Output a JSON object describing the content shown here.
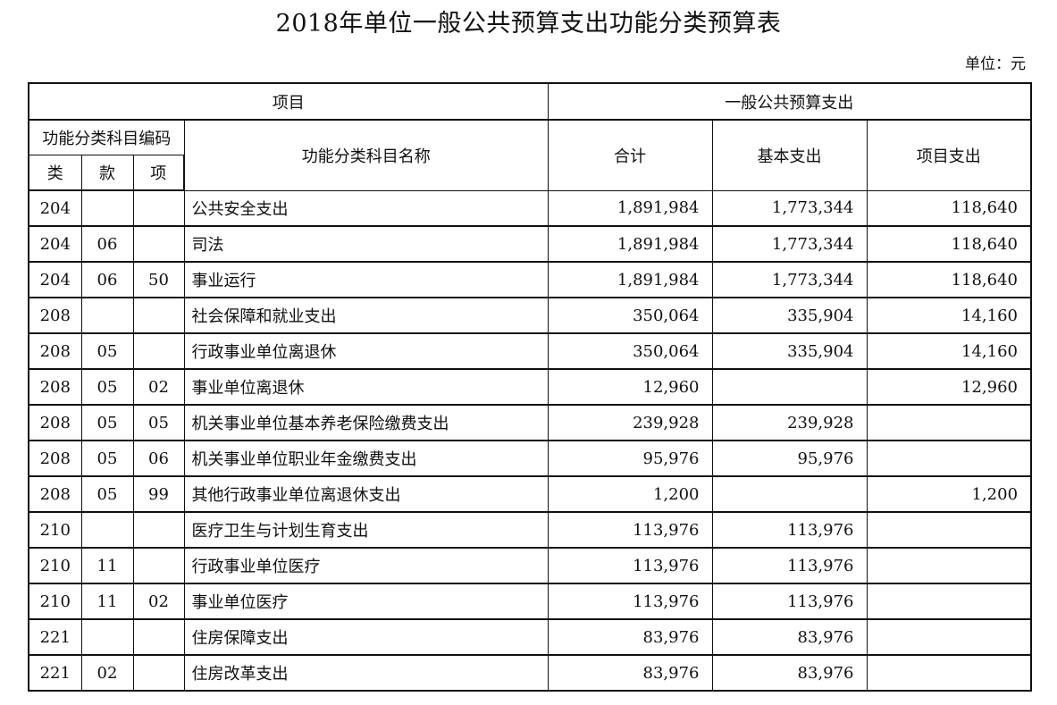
{
  "document": {
    "title": "2018年单位一般公共预算支出功能分类预算表",
    "unit": "单位：元"
  },
  "table": {
    "headers": {
      "item": "项目",
      "general_budget": "一般公共预算支出",
      "code_group": "功能分类科目编码",
      "category": "类",
      "section": "款",
      "item_code": "项",
      "name": "功能分类科目名称",
      "total": "合计",
      "basic": "基本支出",
      "project": "项目支出"
    },
    "rows": [
      {
        "lei": "204",
        "kuan": "",
        "xiang": "",
        "name": "公共安全支出",
        "total": "1,891,984",
        "basic": "1,773,344",
        "project": "118,640"
      },
      {
        "lei": "204",
        "kuan": "06",
        "xiang": "",
        "name": "司法",
        "total": "1,891,984",
        "basic": "1,773,344",
        "project": "118,640"
      },
      {
        "lei": "204",
        "kuan": "06",
        "xiang": "50",
        "name": "事业运行",
        "total": "1,891,984",
        "basic": "1,773,344",
        "project": "118,640"
      },
      {
        "lei": "208",
        "kuan": "",
        "xiang": "",
        "name": "社会保障和就业支出",
        "total": "350,064",
        "basic": "335,904",
        "project": "14,160"
      },
      {
        "lei": "208",
        "kuan": "05",
        "xiang": "",
        "name": "行政事业单位离退休",
        "total": "350,064",
        "basic": "335,904",
        "project": "14,160"
      },
      {
        "lei": "208",
        "kuan": "05",
        "xiang": "02",
        "name": "事业单位离退休",
        "total": "12,960",
        "basic": "",
        "project": "12,960"
      },
      {
        "lei": "208",
        "kuan": "05",
        "xiang": "05",
        "name": "机关事业单位基本养老保险缴费支出",
        "total": "239,928",
        "basic": "239,928",
        "project": ""
      },
      {
        "lei": "208",
        "kuan": "05",
        "xiang": "06",
        "name": "机关事业单位职业年金缴费支出",
        "total": "95,976",
        "basic": "95,976",
        "project": ""
      },
      {
        "lei": "208",
        "kuan": "05",
        "xiang": "99",
        "name": "其他行政事业单位离退休支出",
        "total": "1,200",
        "basic": "",
        "project": "1,200"
      },
      {
        "lei": "210",
        "kuan": "",
        "xiang": "",
        "name": "医疗卫生与计划生育支出",
        "total": "113,976",
        "basic": "113,976",
        "project": ""
      },
      {
        "lei": "210",
        "kuan": "11",
        "xiang": "",
        "name": "行政事业单位医疗",
        "total": "113,976",
        "basic": "113,976",
        "project": ""
      },
      {
        "lei": "210",
        "kuan": "11",
        "xiang": "02",
        "name": "事业单位医疗",
        "total": "113,976",
        "basic": "113,976",
        "project": ""
      },
      {
        "lei": "221",
        "kuan": "",
        "xiang": "",
        "name": "住房保障支出",
        "total": "83,976",
        "basic": "83,976",
        "project": ""
      },
      {
        "lei": "221",
        "kuan": "02",
        "xiang": "",
        "name": "住房改革支出",
        "total": "83,976",
        "basic": "83,976",
        "project": ""
      }
    ]
  }
}
